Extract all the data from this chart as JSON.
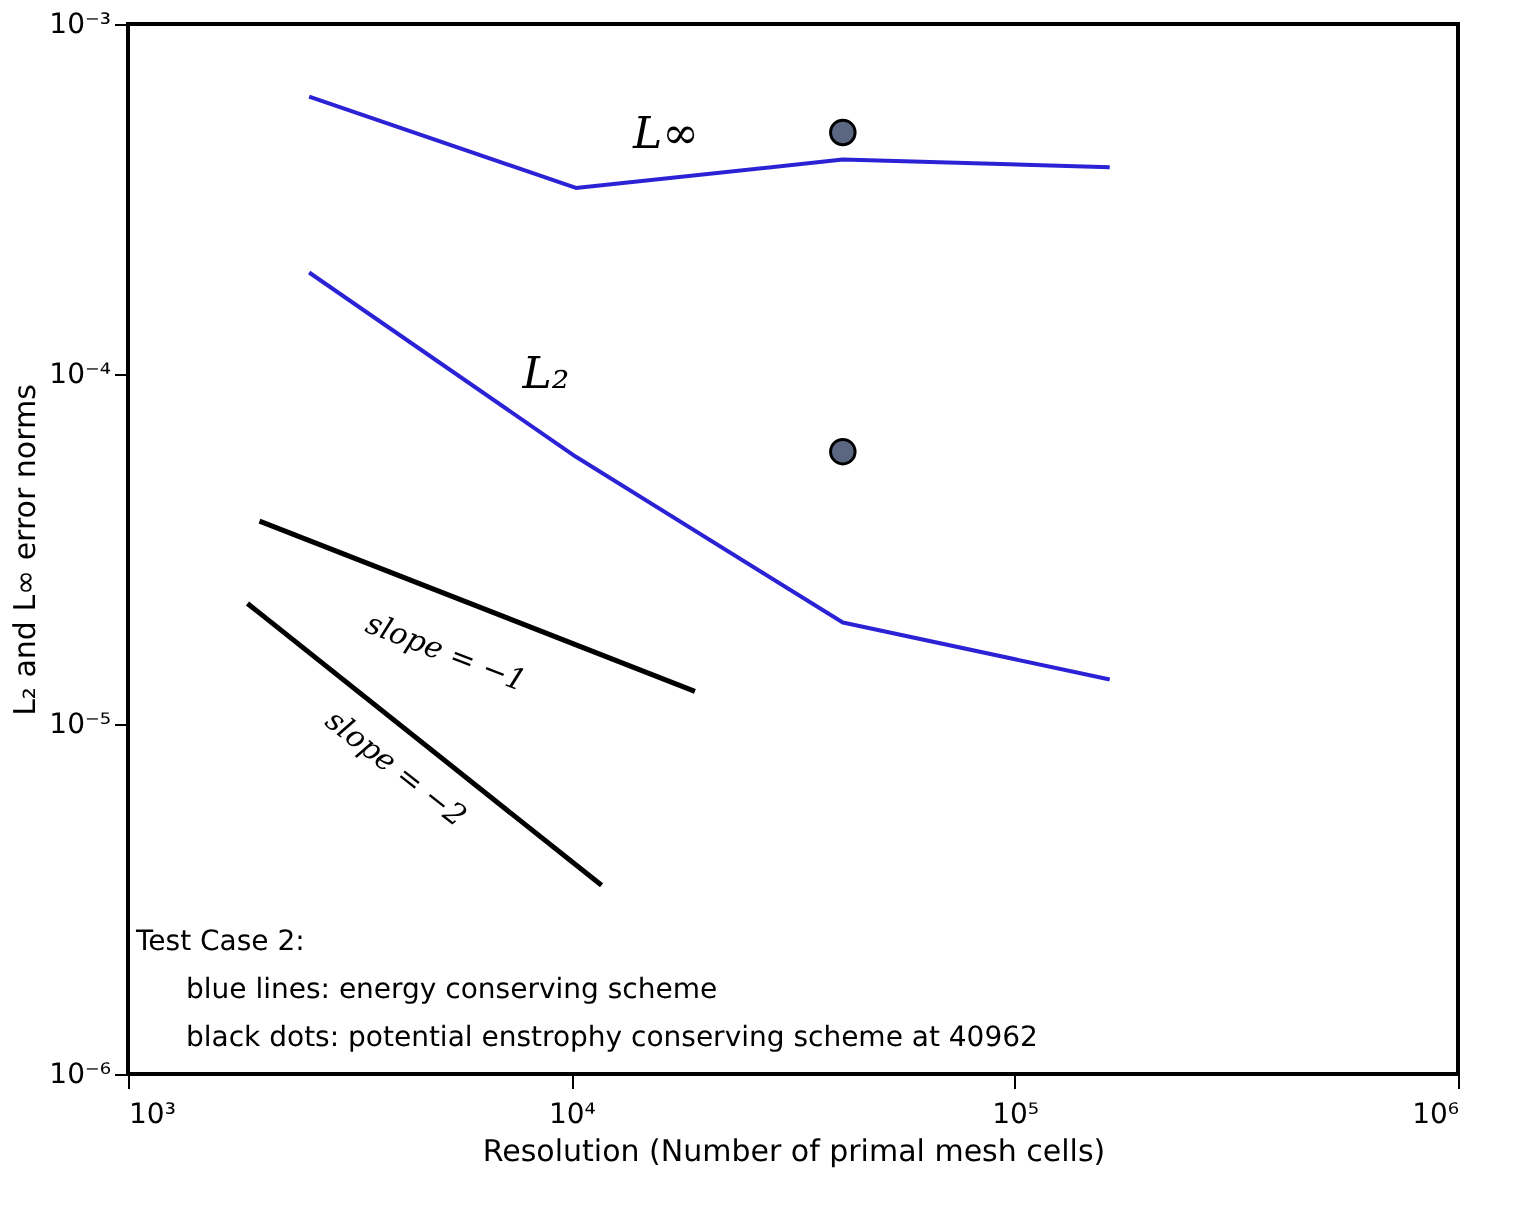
{
  "chart_data": {
    "type": "line",
    "xlabel": "Resolution (Number of primal mesh cells)",
    "ylabel": "L₂ and L∞ error norms",
    "log": "xy",
    "grid": false,
    "marker": "none",
    "line_style": "solid",
    "xlim": [
      1000,
      1000000
    ],
    "ylim": [
      1e-06,
      0.001
    ],
    "xticks": [
      {
        "value": 1000,
        "label": "10³"
      },
      {
        "value": 10000,
        "label": "10⁴"
      },
      {
        "value": 100000,
        "label": "10⁵"
      },
      {
        "value": 1000000,
        "label": "10⁶"
      }
    ],
    "yticks": [
      {
        "value": 1e-06,
        "label": "10⁻⁶"
      },
      {
        "value": 1e-05,
        "label": "10⁻⁵"
      },
      {
        "value": 0.0001,
        "label": "10⁻⁴"
      },
      {
        "value": 0.001,
        "label": "10⁻³"
      }
    ],
    "x": [
      2562,
      10242,
      40962,
      163842
    ],
    "series": [
      {
        "color": "#2b22d6",
        "values": [
          0.00062,
          0.00034,
          0.00041,
          0.00039
        ]
      },
      {
        "color": "#2b22d6",
        "values": [
          0.000195,
          5.8e-05,
          1.95e-05,
          1.34e-05
        ]
      },
      {
        "color": "#000000",
        "x": [
          1980,
          19000
        ],
        "values": [
          3.8e-05,
          1.24e-05
        ]
      },
      {
        "color": "#000000",
        "x": [
          1860,
          11700
        ],
        "values": [
          2.21e-05,
          3.46e-06
        ]
      },
      {
        "type": "scatter",
        "marker": "circle",
        "color": "#5b6680",
        "x": [
          40962,
          40962
        ],
        "values": [
          0.00049,
          6e-05
        ]
      }
    ],
    "annotations": [
      "L∞",
      "L₂",
      "slope = −1",
      "slope = −2",
      "Test Case 2:",
      "blue lines: energy conserving scheme",
      "black dots: potential enstrophy conserving scheme at 40962"
    ]
  }
}
